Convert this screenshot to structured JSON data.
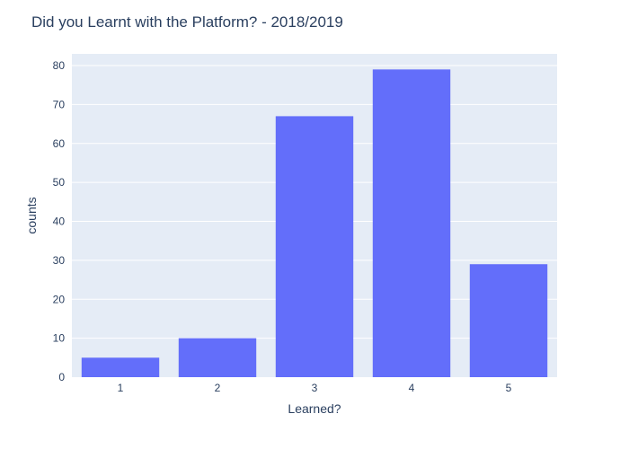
{
  "chart_data": {
    "type": "bar",
    "title": "Did you Learnt with the Platform?  - 2018/2019",
    "xlabel": "Learned?",
    "ylabel": "counts",
    "categories": [
      "1",
      "2",
      "3",
      "4",
      "5"
    ],
    "values": [
      5,
      10,
      67,
      79,
      29
    ],
    "ylim": [
      0,
      83
    ],
    "yticks": [
      0,
      10,
      20,
      30,
      40,
      50,
      60,
      70,
      80
    ],
    "grid": true,
    "legend": "none",
    "colors": {
      "bar": "#636efa",
      "plot_bg": "#e5ecf6",
      "grid": "#ffffff",
      "text": "#2a3f5f"
    }
  }
}
